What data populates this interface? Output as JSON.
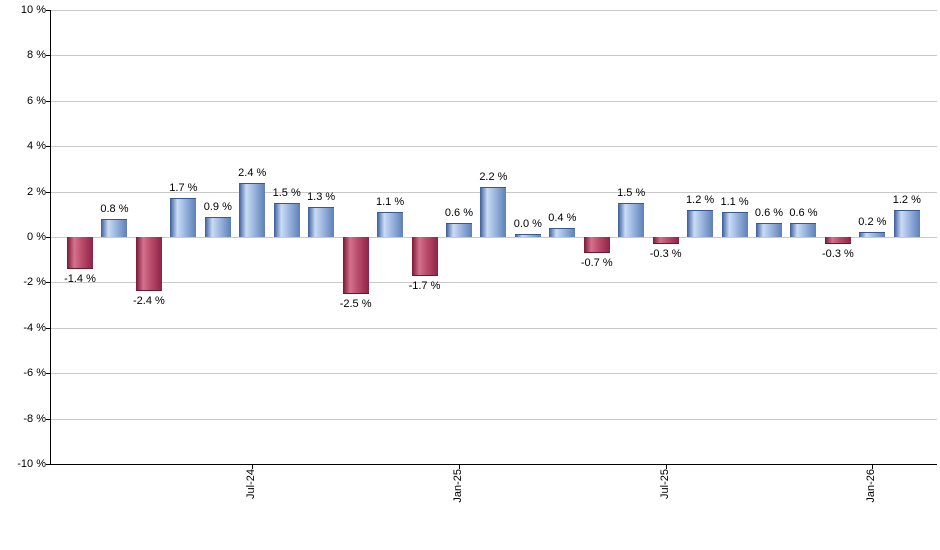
{
  "chart_data": {
    "type": "bar",
    "title": "",
    "xlabel": "",
    "ylabel": "",
    "ylim": [
      -10,
      10
    ],
    "grid": true,
    "legend_position": "none",
    "y_tick_labels": [
      "10 %",
      "8 %",
      "6 %",
      "4 %",
      "2 %",
      "0 %",
      "-2 %",
      "-4 %",
      "-6 %",
      "-8 %",
      "-10 %"
    ],
    "y_tick_values": [
      10,
      8,
      6,
      4,
      2,
      0,
      -2,
      -4,
      -6,
      -8,
      -10
    ],
    "values": [
      -1.4,
      0.8,
      -2.4,
      1.7,
      0.9,
      2.4,
      1.5,
      1.3,
      -2.5,
      1.1,
      -1.7,
      0.6,
      2.2,
      0.0,
      0.4,
      -0.7,
      1.5,
      -0.3,
      1.2,
      1.1,
      0.6,
      0.6,
      -0.3,
      0.2,
      1.2
    ],
    "labels": [
      "-1.4 %",
      "0.8 %",
      "-2.4 %",
      "1.7 %",
      "0.9 %",
      "2.4 %",
      "1.5 %",
      "1.3 %",
      "-2.5 %",
      "1.1 %",
      "-1.7 %",
      "0.6 %",
      "2.2 %",
      "0.0 %",
      "0.4 %",
      "-0.7 %",
      "1.5 %",
      "-0.3 %",
      "1.2 %",
      "1.1 %",
      "0.6 %",
      "0.6 %",
      "-0.3 %",
      "0.2 %",
      "1.2 %"
    ],
    "x_ticks": [
      {
        "index": 5,
        "label": "Jul-24"
      },
      {
        "index": 11,
        "label": "Jan-25"
      },
      {
        "index": 17,
        "label": "Jul-25"
      },
      {
        "index": 23,
        "label": "Jan-26"
      }
    ],
    "colors": {
      "positive_bar": "#5e80b8",
      "negative_bar": "#8f2347",
      "gridline": "#c9c9c9",
      "axis": "#000000",
      "label_text": "#000000",
      "background": "#ffffff"
    }
  }
}
